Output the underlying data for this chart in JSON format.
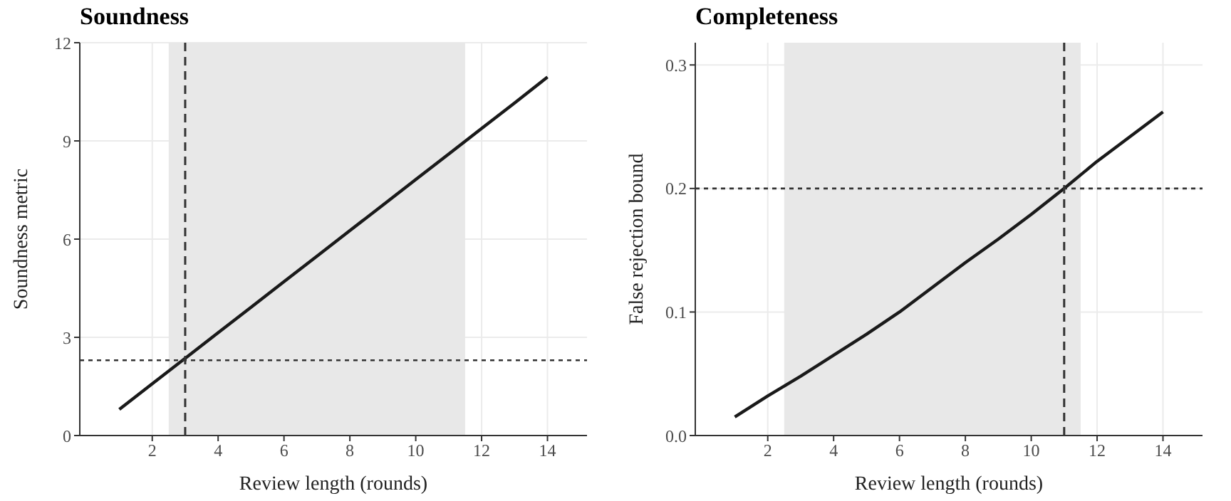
{
  "chart_data": [
    {
      "type": "line",
      "title": "Soundness",
      "xlabel": "Review length (rounds)",
      "ylabel": "Soundness metric",
      "x": [
        1,
        2,
        3,
        4,
        5,
        6,
        7,
        8,
        9,
        10,
        11,
        12,
        13,
        14
      ],
      "series": [
        {
          "color": "#1a1a1a",
          "values": [
            0.8,
            1.58,
            2.36,
            3.14,
            3.92,
            4.7,
            5.48,
            6.26,
            7.04,
            7.82,
            8.6,
            9.38,
            10.16,
            10.95
          ]
        }
      ],
      "xlim": [
        -0.2,
        15.2
      ],
      "xticks": [
        2,
        4,
        6,
        8,
        10,
        12,
        14
      ],
      "ylim": [
        0,
        12
      ],
      "yticks": [
        0,
        3,
        6,
        9,
        12
      ],
      "grid": true,
      "bands": [
        {
          "axis": "x",
          "from": 2.5,
          "to": 11.5,
          "color": "#e8e8e8"
        }
      ],
      "ref_lines": [
        {
          "axis": "x",
          "value": 3,
          "line_style": "dashed",
          "color": "#333333"
        },
        {
          "axis": "y",
          "value": 2.3,
          "line_style": "dotted",
          "color": "#333333"
        }
      ]
    },
    {
      "type": "line",
      "title": "Completeness",
      "xlabel": "Review length (rounds)",
      "ylabel": "False rejection bound",
      "x": [
        1,
        2,
        3,
        4,
        5,
        6,
        7,
        8,
        9,
        10,
        11,
        12,
        13,
        14
      ],
      "series": [
        {
          "color": "#1a1a1a",
          "values": [
            0.015,
            0.032,
            0.048,
            0.065,
            0.082,
            0.1,
            0.12,
            0.14,
            0.159,
            0.179,
            0.2,
            0.222,
            0.242,
            0.262
          ]
        }
      ],
      "xlim": [
        -0.2,
        15.2
      ],
      "xticks": [
        2,
        4,
        6,
        8,
        10,
        12,
        14
      ],
      "ylim": [
        0,
        0.318
      ],
      "yticks": [
        {
          "value": 0,
          "label": "0.0"
        },
        0.1,
        0.2,
        0.3
      ],
      "grid": true,
      "bands": [
        {
          "axis": "x",
          "from": 2.5,
          "to": 11.5,
          "color": "#e8e8e8"
        }
      ],
      "ref_lines": [
        {
          "axis": "x",
          "value": 11,
          "line_style": "dashed",
          "color": "#333333"
        },
        {
          "axis": "y",
          "value": 0.2,
          "line_style": "dotted",
          "color": "#333333"
        }
      ]
    }
  ]
}
